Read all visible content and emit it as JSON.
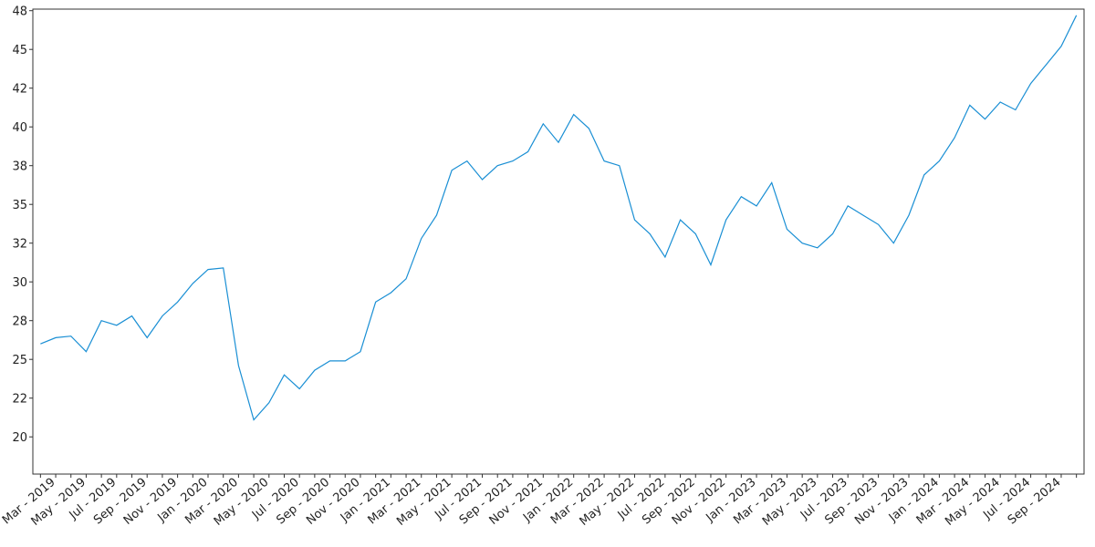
{
  "chart_data": {
    "type": "line",
    "categories": [
      null,
      "Mar - 2019",
      null,
      "May - 2019",
      null,
      "Jul - 2019",
      null,
      "Sep - 2019",
      null,
      "Nov - 2019",
      null,
      "Jan - 2020",
      null,
      "Mar - 2020",
      null,
      "May - 2020",
      null,
      "Jul - 2020",
      null,
      "Sep - 2020",
      null,
      "Nov - 2020",
      null,
      "Jan - 2021",
      null,
      "Mar - 2021",
      null,
      "May - 2021",
      null,
      "Jul - 2021",
      null,
      "Sep - 2021",
      null,
      "Nov - 2021",
      null,
      "Jan - 2022",
      null,
      "Mar - 2022",
      null,
      "May - 2022",
      null,
      "Jul - 2022",
      null,
      "Sep - 2022",
      null,
      "Nov - 2022",
      null,
      "Jan - 2023",
      null,
      "Mar - 2023",
      null,
      "May - 2023",
      null,
      "Jul - 2023",
      null,
      "Sep - 2023",
      null,
      "Nov - 2023",
      null,
      "Jan - 2024",
      null,
      "Mar - 2024",
      null,
      "May - 2024",
      null,
      "Jul - 2024",
      null,
      "Sep - 2024",
      null
    ],
    "values": [
      26.0,
      26.4,
      26.5,
      25.5,
      27.5,
      27.2,
      27.8,
      26.4,
      27.8,
      28.7,
      29.9,
      30.8,
      30.9,
      24.6,
      21.1,
      22.2,
      24.0,
      23.1,
      24.3,
      24.9,
      24.9,
      25.5,
      28.7,
      29.3,
      30.2,
      32.8,
      34.3,
      37.2,
      37.8,
      36.6,
      37.5,
      37.8,
      38.4,
      40.2,
      39.0,
      40.8,
      39.9,
      37.8,
      37.5,
      34.0,
      33.1,
      31.6,
      34.0,
      33.1,
      31.1,
      34.0,
      35.5,
      34.9,
      36.4,
      33.4,
      32.5,
      32.2,
      33.1,
      34.9,
      34.3,
      33.7,
      32.5,
      34.3,
      36.9,
      37.8,
      39.3,
      41.4,
      40.5,
      41.6,
      41.1,
      42.8,
      44.0,
      45.2,
      47.2
    ],
    "color": "#1a8fd4",
    "ylim": [
      17.6,
      47.6
    ],
    "yticks": [
      20,
      {
        "value": 22.5,
        "label": "22"
      },
      25,
      {
        "value": 27.5,
        "label": "28"
      },
      30,
      {
        "value": 32.5,
        "label": "32"
      },
      35,
      {
        "value": 37.5,
        "label": "38"
      },
      40,
      {
        "value": 42.5,
        "label": "42"
      },
      45,
      {
        "value": 47.5,
        "label": "48"
      }
    ]
  }
}
